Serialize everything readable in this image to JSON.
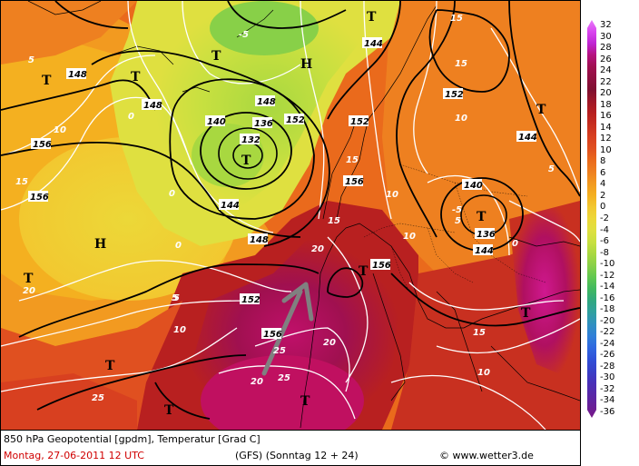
{
  "map": {
    "title": "850 hPa Geopotential [gpdm], Temperatur [Grad C]",
    "date": "Montag, 27-06-2011   12 UTC",
    "model": "(GFS)   (Sonntag 12 + 24)",
    "site": "www.wetter3.de",
    "copyright_symbol": "©",
    "pressure_centers": [
      {
        "label": "H",
        "type": "high"
      },
      {
        "label": "H",
        "type": "high"
      },
      {
        "label": "T",
        "type": "low"
      },
      {
        "label": "T",
        "type": "low"
      },
      {
        "label": "T",
        "type": "low"
      },
      {
        "label": "T",
        "type": "low"
      },
      {
        "label": "T",
        "type": "low"
      },
      {
        "label": "T",
        "type": "low"
      },
      {
        "label": "T",
        "type": "low"
      },
      {
        "label": "T",
        "type": "low"
      },
      {
        "label": "T",
        "type": "low"
      },
      {
        "label": "T",
        "type": "low"
      },
      {
        "label": "T",
        "type": "low"
      },
      {
        "label": "T",
        "type": "low"
      },
      {
        "label": "T",
        "type": "low"
      }
    ],
    "geopotential_labels": [
      "144",
      "148",
      "152",
      "156",
      "140",
      "136",
      "132",
      "144",
      "148",
      "152",
      "156",
      "152",
      "140",
      "136",
      "144",
      "148",
      "156",
      "156",
      "144",
      "152",
      "148",
      "156"
    ],
    "temperature_labels": [
      "5",
      "10",
      "15",
      "20",
      "25",
      "0",
      "-5",
      "0",
      "5",
      "10",
      "15",
      "20",
      "25",
      "15",
      "10",
      "5",
      "0",
      "-5",
      "10",
      "15",
      "20",
      "15",
      "10",
      "5",
      "25",
      "20",
      "15",
      "10",
      "5",
      "0"
    ],
    "legend": {
      "values": [
        "32",
        "30",
        "28",
        "26",
        "24",
        "22",
        "20",
        "18",
        "16",
        "14",
        "12",
        "10",
        "8",
        "6",
        "4",
        "2",
        "0",
        "-2",
        "-4",
        "-6",
        "-8",
        "-10",
        "-12",
        "-14",
        "-16",
        "-18",
        "-20",
        "-22",
        "-24",
        "-26",
        "-28",
        "-30",
        "-32",
        "-34",
        "-36"
      ],
      "colors": [
        "#e879f9",
        "#d946ef",
        "#c026d3",
        "#b5127f",
        "#a01050",
        "#901040",
        "#801030",
        "#a01828",
        "#b82020",
        "#c83020",
        "#d84020",
        "#e05020",
        "#ea6a1c",
        "#ee8020",
        "#f29a20",
        "#f4b020",
        "#f2c830",
        "#ecd838",
        "#dfe040",
        "#c8e040",
        "#a8d840",
        "#88d048",
        "#60c850",
        "#40b860",
        "#30a880",
        "#30a0a0",
        "#3090c0",
        "#3080d8",
        "#3068e0",
        "#3050d8",
        "#3840c8",
        "#4830b8",
        "#5828a8",
        "#682098",
        "#781888"
      ]
    }
  }
}
